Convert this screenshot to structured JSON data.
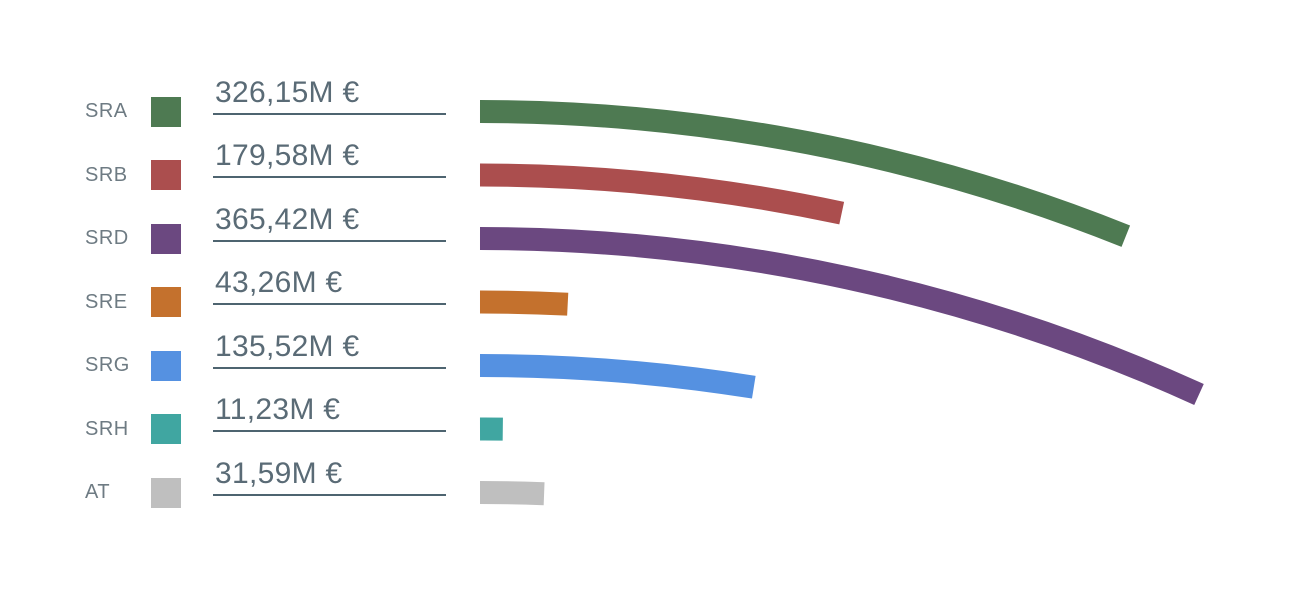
{
  "chart_data": {
    "type": "bar",
    "variant": "curved-horizontal-bars",
    "title": "",
    "xlabel": "",
    "ylabel": "",
    "unit": "M €",
    "grid": false,
    "legend_position": "left",
    "categories": [
      "SRA",
      "SRB",
      "SRD",
      "SRE",
      "SRG",
      "SRH",
      "AT"
    ],
    "values": [
      326.15,
      179.58,
      365.42,
      43.26,
      135.52,
      11.23,
      31.59
    ],
    "value_labels": [
      "326,15M €",
      "179,58M €",
      "365,42M €",
      "43,26M €",
      "135,52M €",
      "11,23M €",
      "31,59M €"
    ],
    "colors": [
      "#4e7a52",
      "#ab4e4e",
      "#6b4880",
      "#c4712d",
      "#5591e1",
      "#40a6a1",
      "#bfbfbf"
    ]
  },
  "styles": {
    "background": "#ffffff",
    "label_color": "#6e7b83",
    "value_color": "#5a6b76",
    "underline_color": "#4e6470"
  }
}
